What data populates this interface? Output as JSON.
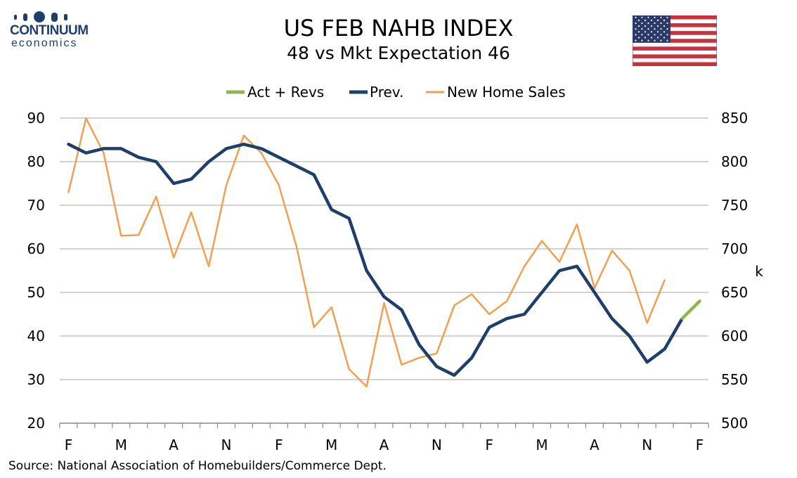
{
  "branding": {
    "logo_main": "CONTINUUM",
    "logo_sub": "economics",
    "flag_icon": "us-flag-icon"
  },
  "source_text": "Source: National Association of Homebuilders/Commerce Dept.",
  "chart_data": {
    "type": "line",
    "title": "US FEB NAHB INDEX",
    "subtitle": "48 vs Mkt Expectation 46",
    "xlabel": "",
    "ylabel": "",
    "y2label": "k",
    "x_tick_labels": [
      "F",
      "M",
      "A",
      "N",
      "F",
      "M",
      "A",
      "N",
      "F",
      "M",
      "A",
      "N",
      "F"
    ],
    "ylim": [
      20,
      90
    ],
    "y_ticks": [
      20,
      30,
      40,
      50,
      60,
      70,
      80,
      90
    ],
    "y2lim": [
      500,
      850
    ],
    "y2_ticks": [
      500,
      550,
      600,
      650,
      700,
      750,
      800,
      850
    ],
    "grid": true,
    "legend_position": "top-center",
    "series": [
      {
        "name": "Act + Revs",
        "axis": "left",
        "color": "#8db554",
        "start_index": 35,
        "values": [
          44,
          48
        ]
      },
      {
        "name": "Prev.",
        "axis": "left",
        "color": "#1f3f6b",
        "start_index": 0,
        "values": [
          84,
          82,
          83,
          83,
          81,
          80,
          75,
          76,
          80,
          83,
          84,
          83,
          81,
          79,
          77,
          69,
          67,
          55,
          49,
          46,
          38,
          33,
          31,
          35,
          42,
          44,
          45,
          50,
          55,
          56,
          50,
          44,
          40,
          34,
          37,
          44
        ]
      },
      {
        "name": "New Home Sales",
        "axis": "right",
        "color": "#f0a050",
        "start_index": 0,
        "values": [
          765,
          850,
          810,
          715,
          716,
          760,
          690,
          742,
          680,
          773,
          830,
          810,
          773,
          703,
          610,
          633,
          562,
          542,
          638,
          567,
          575,
          580,
          635,
          648,
          625,
          640,
          680,
          709,
          685,
          728,
          655,
          698,
          675,
          615,
          664
        ]
      }
    ]
  }
}
